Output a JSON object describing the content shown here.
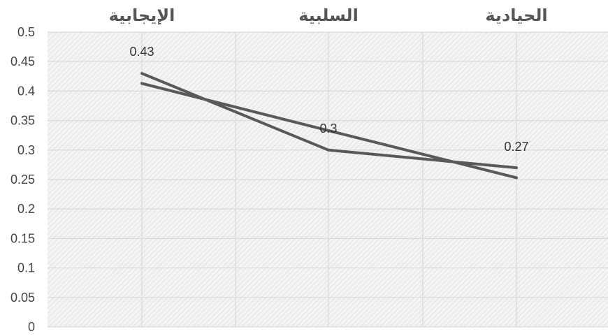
{
  "chart_data": {
    "type": "line",
    "categories": [
      "الإيجابية",
      "السلبية",
      "الحيادية"
    ],
    "series": [
      {
        "values": [
          0.43,
          0.3,
          0.27
        ],
        "data_labels": [
          "0.43",
          "0.3",
          "0.27"
        ]
      },
      {
        "values": [
          0.413,
          0.333,
          0.253
        ],
        "trendline": true
      }
    ],
    "ylim": [
      0,
      0.5
    ],
    "yticks": [
      "0",
      "0.05",
      "0.1",
      "0.15",
      "0.2",
      "0.25",
      "0.3",
      "0.35",
      "0.4",
      "0.45",
      "0.5"
    ],
    "category_axis_position": "top",
    "grid": true,
    "line_color": "#595959",
    "plot_background": "#efefef",
    "grid_color": "#d9d9d9"
  }
}
